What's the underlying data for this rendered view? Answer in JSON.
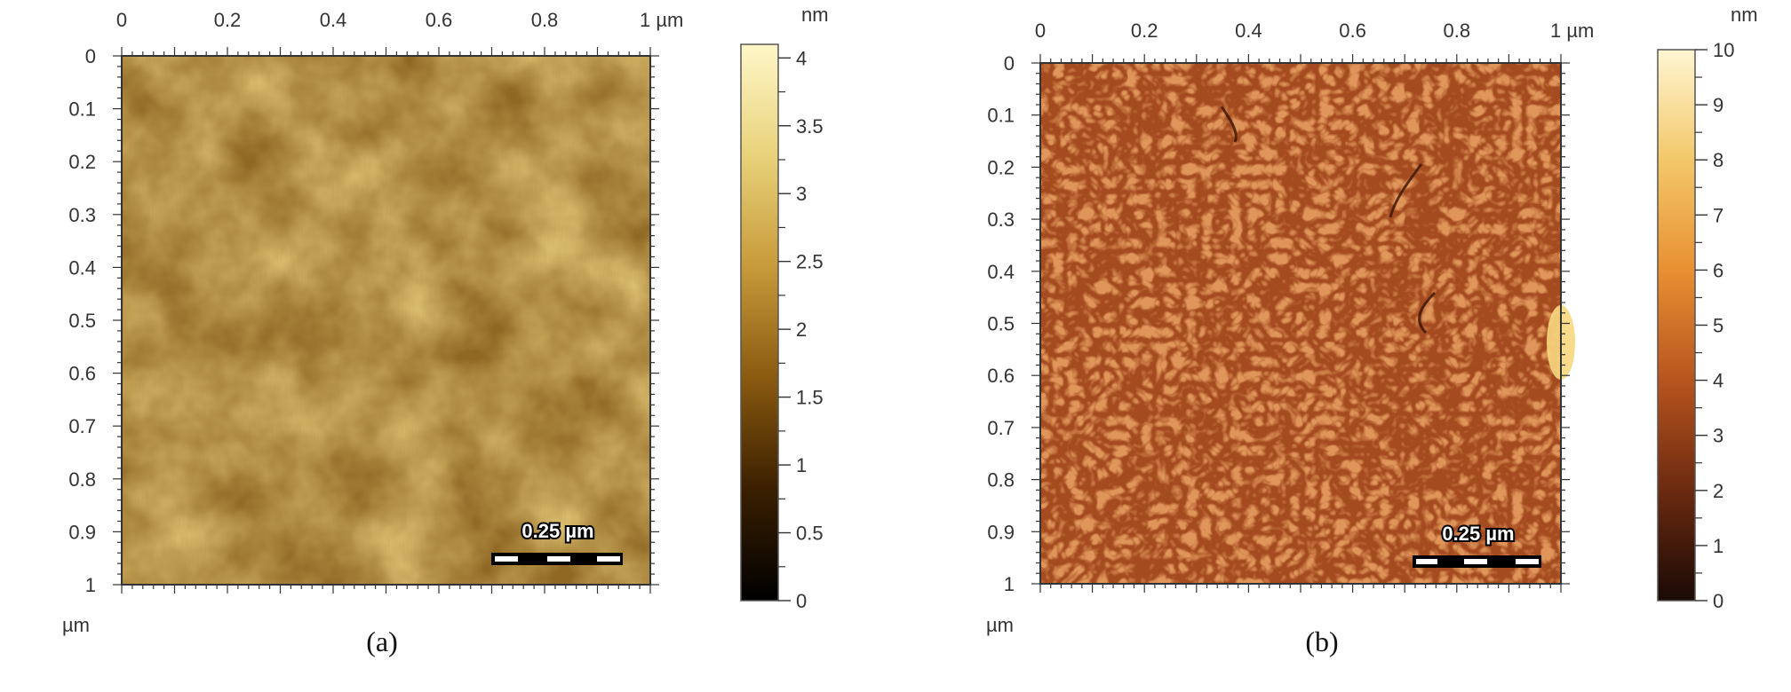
{
  "panels": [
    {
      "caption": "(a)",
      "x_ticks": [
        "0",
        "0.2",
        "0.4",
        "0.6",
        "0.8",
        "1 µm"
      ],
      "y_ticks": [
        "0",
        "0.1",
        "0.2",
        "0.3",
        "0.4",
        "0.5",
        "0.6",
        "0.7",
        "0.8",
        "0.9",
        "1"
      ],
      "axis_unit": "µm",
      "colorbar_unit": "nm",
      "colorbar_ticks": [
        "4",
        "3.5",
        "3",
        "2.5",
        "2",
        "1.5",
        "1",
        "0.5",
        "0"
      ],
      "colorbar_range": [
        0,
        4.1
      ],
      "colormap": [
        "#000000",
        "#3a1f00",
        "#8a5a10",
        "#c79a3a",
        "#e8d27a",
        "#fff7c8"
      ],
      "scalebar_label": "0.25 µm",
      "image_texture": "granular grains",
      "image_colors": {
        "dark": "#6e4a12",
        "mid": "#b3862f",
        "light": "#e6c878"
      }
    },
    {
      "caption": "(b)",
      "x_ticks": [
        "0",
        "0.2",
        "0.4",
        "0.6",
        "0.8",
        "1 µm"
      ],
      "y_ticks": [
        "0",
        "0.1",
        "0.2",
        "0.3",
        "0.4",
        "0.5",
        "0.6",
        "0.7",
        "0.8",
        "0.9",
        "1"
      ],
      "axis_unit": "µm",
      "colorbar_unit": "nm",
      "colorbar_ticks": [
        "10",
        "9",
        "8",
        "7",
        "6",
        "5",
        "4",
        "3",
        "2",
        "1",
        "0"
      ],
      "colorbar_range": [
        0,
        10
      ],
      "colormap": [
        "#1a0a05",
        "#6b2a10",
        "#b8541e",
        "#e89032",
        "#f3c86a",
        "#fff6d2"
      ],
      "scalebar_label": "0.25 µm",
      "image_texture": "labyrinth domains",
      "image_colors": {
        "dark": "#8e3f1a",
        "mid": "#b85a2a",
        "light": "#d98a4c"
      }
    }
  ]
}
